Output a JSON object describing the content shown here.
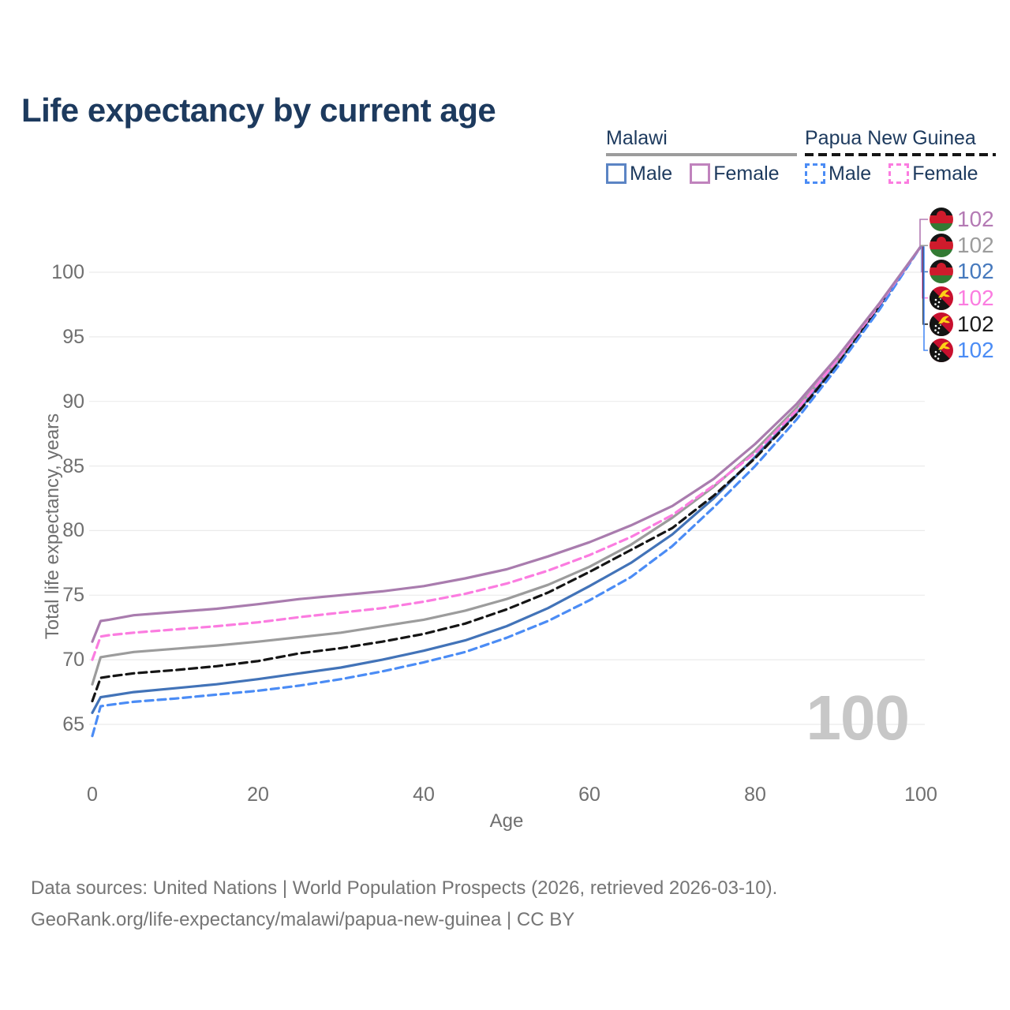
{
  "title": "Life expectancy by current age",
  "watermark": "100",
  "colors": {
    "title": "#1d3a5e",
    "axis": "#6f6f6f",
    "grid": "#ebebeb",
    "watermark": "#c7c7c7",
    "footer": "#757575"
  },
  "legend": {
    "groups": [
      {
        "name": "Malawi",
        "line_style": "solid",
        "line_color": "#9c9c9c",
        "items": [
          {
            "label": "Male",
            "color": "#5b84c4",
            "dashed": false
          },
          {
            "label": "Female",
            "color": "#c083bd",
            "dashed": false
          }
        ]
      },
      {
        "name": "Papua New Guinea",
        "line_style": "dashed",
        "line_color": "#151515",
        "items": [
          {
            "label": "Male",
            "color": "#4b8cf5",
            "dashed": true
          },
          {
            "label": "Female",
            "color": "#fb7ce0",
            "dashed": true
          }
        ]
      }
    ]
  },
  "chart_data": {
    "type": "line",
    "title": "Life expectancy by current age",
    "xlabel": "Age",
    "ylabel": "Total life expectancy, years",
    "xlim": [
      0,
      100
    ],
    "ylim": [
      65,
      100
    ],
    "xticks": [
      0,
      20,
      40,
      60,
      80,
      100
    ],
    "yticks": [
      65,
      70,
      75,
      80,
      85,
      90,
      95,
      100
    ],
    "grid": "horizontal",
    "legend_position": "top-right",
    "ages": [
      0,
      1,
      2,
      5,
      10,
      15,
      20,
      25,
      30,
      35,
      40,
      45,
      50,
      55,
      60,
      65,
      70,
      75,
      80,
      85,
      90,
      95,
      100
    ],
    "series": [
      {
        "id": "malawi-female",
        "name": "Malawi Female",
        "country": "Malawi",
        "sex": "Female",
        "color": "#a97cae",
        "dashed": false,
        "values": [
          71.4,
          73.0,
          73.1,
          73.45,
          73.7,
          73.95,
          74.3,
          74.7,
          75.0,
          75.3,
          75.7,
          76.3,
          77.0,
          78.0,
          79.1,
          80.4,
          81.9,
          84.0,
          86.7,
          89.8,
          93.5,
          97.6,
          102
        ]
      },
      {
        "id": "malawi-both",
        "name": "Malawi Both sexes",
        "country": "Malawi",
        "sex": "Both",
        "color": "#9c9c9c",
        "dashed": false,
        "values": [
          68.1,
          70.2,
          70.3,
          70.6,
          70.85,
          71.1,
          71.4,
          71.75,
          72.1,
          72.6,
          73.1,
          73.8,
          74.7,
          75.8,
          77.2,
          78.9,
          81.0,
          83.4,
          86.2,
          89.5,
          93.2,
          97.5,
          102
        ]
      },
      {
        "id": "malawi-male",
        "name": "Malawi Male",
        "country": "Malawi",
        "sex": "Male",
        "color": "#4273b8",
        "dashed": false,
        "values": [
          65.9,
          67.1,
          67.2,
          67.5,
          67.8,
          68.1,
          68.5,
          68.95,
          69.4,
          70.0,
          70.7,
          71.5,
          72.6,
          74.0,
          75.7,
          77.5,
          79.7,
          82.5,
          85.7,
          89.1,
          93.0,
          97.4,
          102
        ]
      },
      {
        "id": "png-female",
        "name": "Papua New Guinea Female",
        "country": "Papua New Guinea",
        "sex": "Female",
        "color": "#fb7ce0",
        "dashed": true,
        "values": [
          70.0,
          71.8,
          71.9,
          72.1,
          72.35,
          72.6,
          72.9,
          73.3,
          73.65,
          74.0,
          74.5,
          75.1,
          75.9,
          76.9,
          78.1,
          79.5,
          81.2,
          83.5,
          86.0,
          89.3,
          93.3,
          97.5,
          102
        ]
      },
      {
        "id": "png-both",
        "name": "Papua New Guinea Both sexes",
        "country": "Papua New Guinea",
        "sex": "Both",
        "color": "#151515",
        "dashed": true,
        "values": [
          66.8,
          68.6,
          68.7,
          68.95,
          69.2,
          69.5,
          69.9,
          70.5,
          70.9,
          71.4,
          72.0,
          72.8,
          73.9,
          75.2,
          76.8,
          78.5,
          80.2,
          82.7,
          85.6,
          89.0,
          92.9,
          97.3,
          102
        ]
      },
      {
        "id": "png-male",
        "name": "Papua New Guinea Male",
        "country": "Papua New Guinea",
        "sex": "Male",
        "color": "#4b8cf5",
        "dashed": true,
        "values": [
          64.1,
          66.4,
          66.5,
          66.75,
          67.0,
          67.3,
          67.6,
          68.0,
          68.5,
          69.1,
          69.8,
          70.6,
          71.7,
          73.0,
          74.6,
          76.4,
          78.8,
          81.8,
          85.0,
          88.6,
          92.7,
          97.1,
          102
        ]
      }
    ],
    "end_labels": [
      {
        "id": "malawi-female",
        "value": "102",
        "flag": "malawi",
        "color": "#b47ab4"
      },
      {
        "id": "malawi-both",
        "value": "102",
        "flag": "malawi",
        "color": "#9c9c9c"
      },
      {
        "id": "malawi-male",
        "value": "102",
        "flag": "malawi",
        "color": "#4679bd"
      },
      {
        "id": "png-female",
        "value": "102",
        "flag": "papua-new-guinea",
        "color": "#fb7ce0"
      },
      {
        "id": "png-both",
        "value": "102",
        "flag": "papua-new-guinea",
        "color": "#1c1c1c"
      },
      {
        "id": "png-male",
        "value": "102",
        "flag": "papua-new-guinea",
        "color": "#4b8cf5"
      }
    ]
  },
  "footer": {
    "line1": "Data sources: United Nations | World Population Prospects (2026, retrieved 2026-03-10).",
    "line2": "GeoRank.org/life-expectancy/malawi/papua-new-guinea | CC BY"
  }
}
